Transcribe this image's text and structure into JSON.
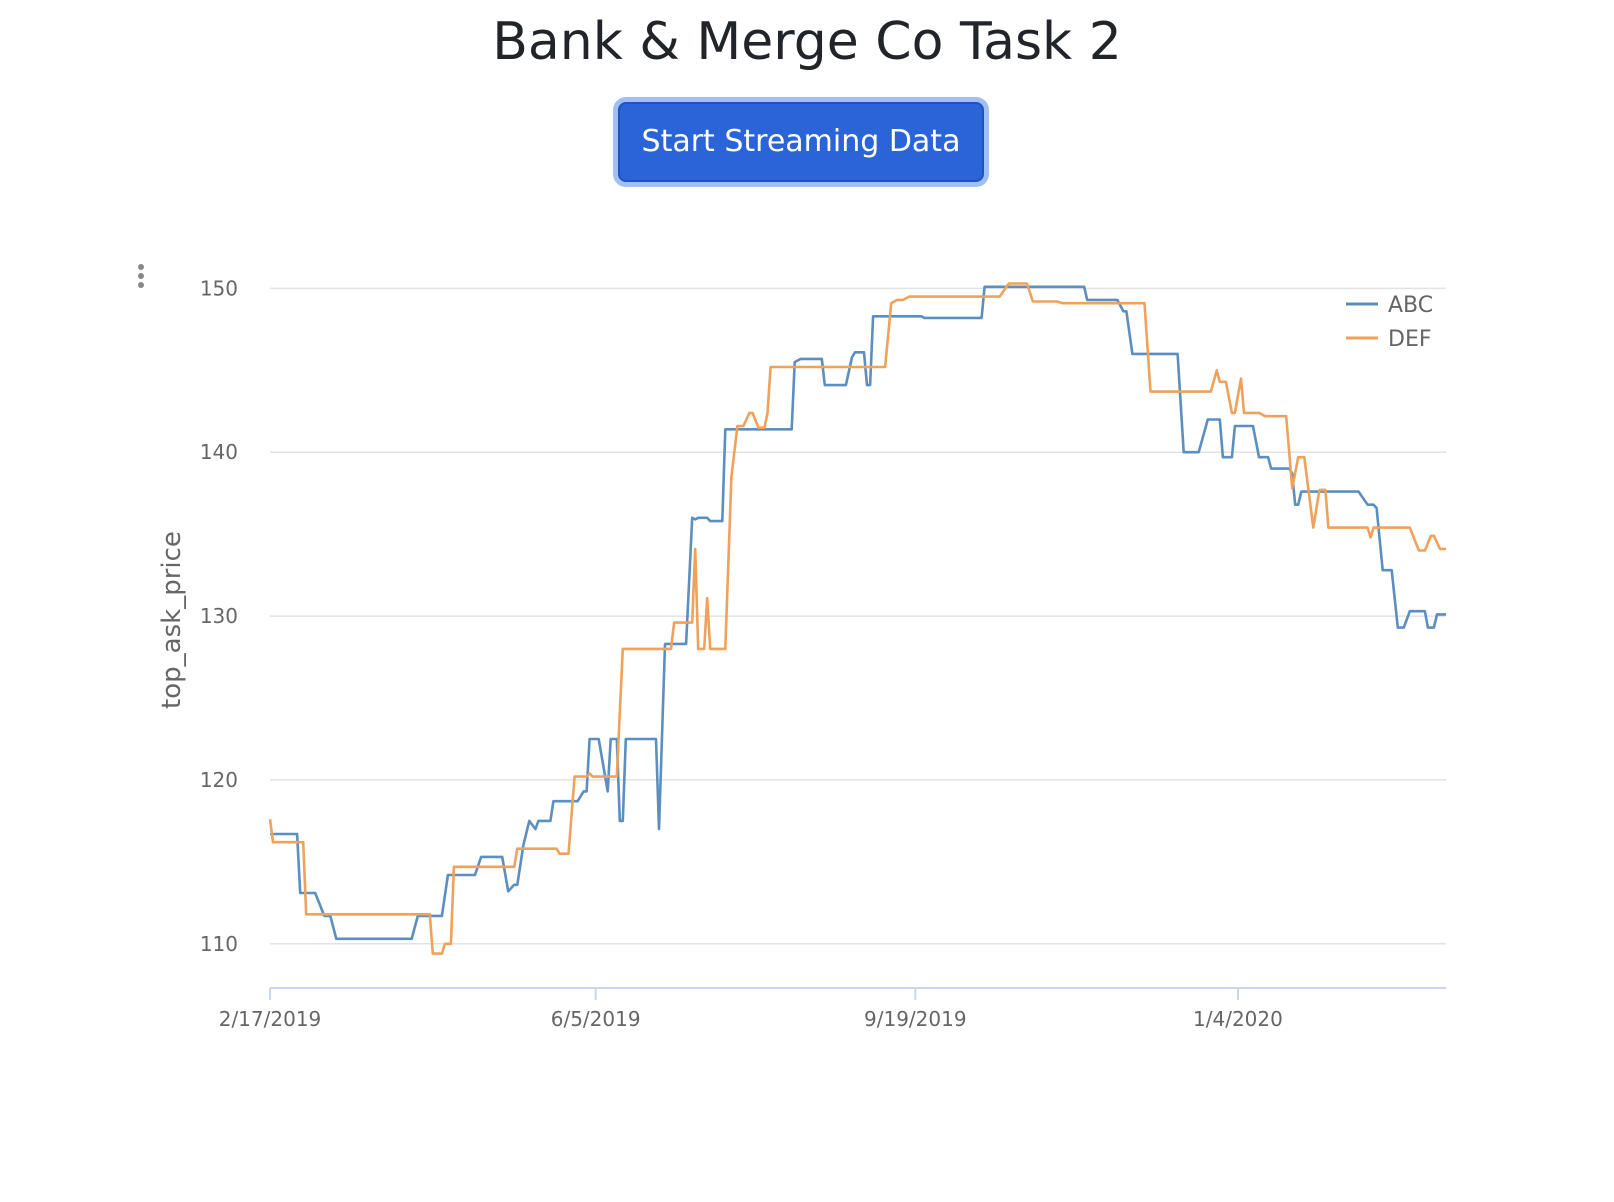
{
  "header": {
    "title": "Bank & Merge Co Task 2"
  },
  "controls": {
    "stream_button_label": "Start Streaming Data",
    "menu_icon": "vertical-ellipsis-icon"
  },
  "colors": {
    "ABC": "#5b8ec1",
    "DEF": "#f0a15a",
    "button": "#2a64d6"
  },
  "chart_data": {
    "type": "line",
    "title": "",
    "xlabel": "",
    "ylabel": "top_ask_price",
    "ylim": [
      107.3,
      152.1
    ],
    "xlim": [
      "2019-02-17",
      "2020-03-13"
    ],
    "grid": true,
    "legend_position": "top-right",
    "y_ticks": [
      110,
      120,
      130,
      140,
      150
    ],
    "x_ticks": [
      "2/17/2019",
      "6/5/2019",
      "9/19/2019",
      "1/4/2020"
    ],
    "x_tick_dates": [
      "2019-02-17",
      "2019-06-05",
      "2019-09-19",
      "2020-01-04"
    ],
    "series": [
      {
        "name": "ABC",
        "color": "#5b8ec1",
        "points": [
          [
            "2019-02-17",
            116.7
          ],
          [
            "2019-02-26",
            116.7
          ],
          [
            "2019-02-27",
            113.1
          ],
          [
            "2019-03-04",
            113.1
          ],
          [
            "2019-03-07",
            111.7
          ],
          [
            "2019-03-09",
            111.7
          ],
          [
            "2019-03-11",
            110.3
          ],
          [
            "2019-04-05",
            110.3
          ],
          [
            "2019-04-07",
            111.7
          ],
          [
            "2019-04-15",
            111.7
          ],
          [
            "2019-04-17",
            114.2
          ],
          [
            "2019-04-26",
            114.2
          ],
          [
            "2019-04-28",
            115.3
          ],
          [
            "2019-05-05",
            115.3
          ],
          [
            "2019-05-07",
            113.2
          ],
          [
            "2019-05-09",
            113.6
          ],
          [
            "2019-05-10",
            113.6
          ],
          [
            "2019-05-12",
            116.0
          ],
          [
            "2019-05-14",
            117.5
          ],
          [
            "2019-05-16",
            117.0
          ],
          [
            "2019-05-17",
            117.5
          ],
          [
            "2019-05-21",
            117.5
          ],
          [
            "2019-05-22",
            118.7
          ],
          [
            "2019-05-30",
            118.7
          ],
          [
            "2019-06-01",
            119.3
          ],
          [
            "2019-06-02",
            119.3
          ],
          [
            "2019-06-03",
            122.5
          ],
          [
            "2019-06-06",
            122.5
          ],
          [
            "2019-06-09",
            119.3
          ],
          [
            "2019-06-10",
            122.5
          ],
          [
            "2019-06-12",
            122.5
          ],
          [
            "2019-06-13",
            117.5
          ],
          [
            "2019-06-14",
            117.5
          ],
          [
            "2019-06-15",
            122.5
          ],
          [
            "2019-06-25",
            122.5
          ],
          [
            "2019-06-26",
            117.0
          ],
          [
            "2019-06-28",
            128.3
          ],
          [
            "2019-07-05",
            128.3
          ],
          [
            "2019-07-07",
            136.0
          ],
          [
            "2019-07-08",
            135.9
          ],
          [
            "2019-07-09",
            136.0
          ],
          [
            "2019-07-12",
            136.0
          ],
          [
            "2019-07-13",
            135.8
          ],
          [
            "2019-07-17",
            135.8
          ],
          [
            "2019-07-18",
            141.4
          ],
          [
            "2019-08-09",
            141.4
          ],
          [
            "2019-08-10",
            145.5
          ],
          [
            "2019-08-12",
            145.7
          ],
          [
            "2019-08-19",
            145.7
          ],
          [
            "2019-08-20",
            144.1
          ],
          [
            "2019-08-27",
            144.1
          ],
          [
            "2019-08-29",
            145.8
          ],
          [
            "2019-08-30",
            146.1
          ],
          [
            "2019-09-02",
            146.1
          ],
          [
            "2019-09-03",
            144.1
          ],
          [
            "2019-09-04",
            144.1
          ],
          [
            "2019-09-05",
            148.3
          ],
          [
            "2019-09-21",
            148.3
          ],
          [
            "2019-09-22",
            148.2
          ],
          [
            "2019-10-11",
            148.2
          ],
          [
            "2019-10-12",
            150.1
          ],
          [
            "2019-11-14",
            150.1
          ],
          [
            "2019-11-15",
            149.3
          ],
          [
            "2019-11-25",
            149.3
          ],
          [
            "2019-11-27",
            148.6
          ],
          [
            "2019-11-28",
            148.6
          ],
          [
            "2019-11-30",
            146.0
          ],
          [
            "2019-12-15",
            146.0
          ],
          [
            "2019-12-17",
            140.0
          ],
          [
            "2019-12-22",
            140.0
          ],
          [
            "2019-12-25",
            142.0
          ],
          [
            "2019-12-29",
            142.0
          ],
          [
            "2019-12-30",
            139.7
          ],
          [
            "2020-01-02",
            139.7
          ],
          [
            "2020-01-03",
            141.6
          ],
          [
            "2020-01-09",
            141.6
          ],
          [
            "2020-01-11",
            139.7
          ],
          [
            "2020-01-14",
            139.7
          ],
          [
            "2020-01-15",
            139.0
          ],
          [
            "2020-01-21",
            139.0
          ],
          [
            "2020-01-22",
            138.7
          ],
          [
            "2020-01-23",
            136.8
          ],
          [
            "2020-01-24",
            136.8
          ],
          [
            "2020-01-25",
            137.6
          ],
          [
            "2020-02-13",
            137.6
          ],
          [
            "2020-02-16",
            136.8
          ],
          [
            "2020-02-18",
            136.8
          ],
          [
            "2020-02-19",
            136.6
          ],
          [
            "2020-02-21",
            132.8
          ],
          [
            "2020-02-24",
            132.8
          ],
          [
            "2020-02-26",
            129.3
          ],
          [
            "2020-02-28",
            129.3
          ],
          [
            "2020-03-01",
            130.3
          ],
          [
            "2020-03-06",
            130.3
          ],
          [
            "2020-03-07",
            129.3
          ],
          [
            "2020-03-09",
            129.3
          ],
          [
            "2020-03-10",
            130.1
          ],
          [
            "2020-03-13",
            130.1
          ]
        ]
      },
      {
        "name": "DEF",
        "color": "#f0a15a",
        "points": [
          [
            "2019-02-17",
            117.6
          ],
          [
            "2019-02-18",
            116.2
          ],
          [
            "2019-02-28",
            116.2
          ],
          [
            "2019-03-01",
            111.8
          ],
          [
            "2019-04-11",
            111.8
          ],
          [
            "2019-04-12",
            109.4
          ],
          [
            "2019-04-15",
            109.4
          ],
          [
            "2019-04-16",
            110.0
          ],
          [
            "2019-04-18",
            110.0
          ],
          [
            "2019-04-19",
            114.7
          ],
          [
            "2019-05-09",
            114.7
          ],
          [
            "2019-05-10",
            115.8
          ],
          [
            "2019-05-23",
            115.8
          ],
          [
            "2019-05-24",
            115.5
          ],
          [
            "2019-05-27",
            115.5
          ],
          [
            "2019-05-29",
            120.2
          ],
          [
            "2019-06-02",
            120.2
          ],
          [
            "2019-06-03",
            120.4
          ],
          [
            "2019-06-04",
            120.2
          ],
          [
            "2019-06-12",
            120.2
          ],
          [
            "2019-06-14",
            128.0
          ],
          [
            "2019-06-30",
            128.0
          ],
          [
            "2019-07-01",
            129.6
          ],
          [
            "2019-07-07",
            129.6
          ],
          [
            "2019-07-08",
            134.1
          ],
          [
            "2019-07-09",
            128.0
          ],
          [
            "2019-07-11",
            128.0
          ],
          [
            "2019-07-12",
            131.1
          ],
          [
            "2019-07-13",
            128.0
          ],
          [
            "2019-07-18",
            128.0
          ],
          [
            "2019-07-20",
            138.5
          ],
          [
            "2019-07-22",
            141.6
          ],
          [
            "2019-07-24",
            141.6
          ],
          [
            "2019-07-26",
            142.4
          ],
          [
            "2019-07-27",
            142.4
          ],
          [
            "2019-07-29",
            141.5
          ],
          [
            "2019-07-31",
            141.5
          ],
          [
            "2019-08-01",
            142.4
          ],
          [
            "2019-08-02",
            145.2
          ],
          [
            "2019-08-30",
            145.2
          ],
          [
            "2019-09-03",
            145.2
          ],
          [
            "2019-09-09",
            145.2
          ],
          [
            "2019-09-11",
            149.1
          ],
          [
            "2019-09-13",
            149.3
          ],
          [
            "2019-09-15",
            149.3
          ],
          [
            "2019-09-17",
            149.5
          ],
          [
            "2019-10-17",
            149.5
          ],
          [
            "2019-10-20",
            150.3
          ],
          [
            "2019-10-26",
            150.3
          ],
          [
            "2019-10-28",
            149.2
          ],
          [
            "2019-11-05",
            149.2
          ],
          [
            "2019-11-07",
            149.1
          ],
          [
            "2019-12-04",
            149.1
          ],
          [
            "2019-12-06",
            143.7
          ],
          [
            "2019-12-26",
            143.7
          ],
          [
            "2019-12-28",
            145.0
          ],
          [
            "2019-12-29",
            144.3
          ],
          [
            "2019-12-31",
            144.3
          ],
          [
            "2020-01-02",
            142.4
          ],
          [
            "2020-01-03",
            142.4
          ],
          [
            "2020-01-05",
            144.5
          ],
          [
            "2020-01-06",
            142.4
          ],
          [
            "2020-01-11",
            142.4
          ],
          [
            "2020-01-13",
            142.2
          ],
          [
            "2020-01-20",
            142.2
          ],
          [
            "2020-01-22",
            137.8
          ],
          [
            "2020-01-24",
            139.7
          ],
          [
            "2020-01-26",
            139.7
          ],
          [
            "2020-01-29",
            135.4
          ],
          [
            "2020-01-31",
            137.7
          ],
          [
            "2020-02-02",
            137.7
          ],
          [
            "2020-02-03",
            135.4
          ],
          [
            "2020-02-16",
            135.4
          ],
          [
            "2020-02-17",
            134.8
          ],
          [
            "2020-02-18",
            135.4
          ],
          [
            "2020-03-01",
            135.4
          ],
          [
            "2020-03-04",
            134.0
          ],
          [
            "2020-03-06",
            134.0
          ],
          [
            "2020-03-08",
            134.9
          ],
          [
            "2020-03-09",
            134.9
          ],
          [
            "2020-03-11",
            134.1
          ],
          [
            "2020-03-13",
            134.1
          ]
        ]
      }
    ]
  }
}
